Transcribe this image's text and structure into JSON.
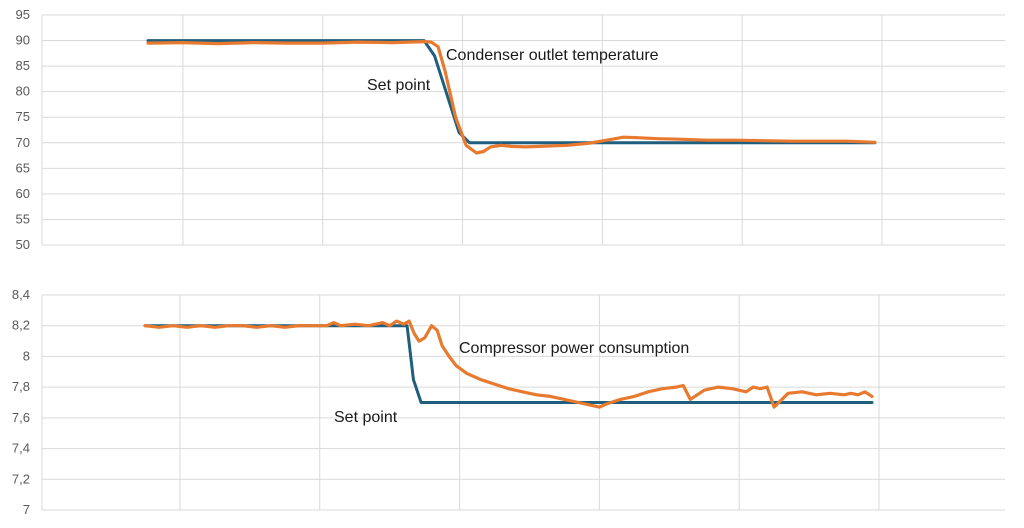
{
  "chart_data": [
    {
      "type": "line",
      "title": "",
      "xlabel": "",
      "ylabel": "",
      "ylim": [
        50,
        95
      ],
      "yticks": [
        "95",
        "90",
        "85",
        "80",
        "75",
        "70",
        "65",
        "60",
        "55",
        "50"
      ],
      "xlim": [
        0,
        100
      ],
      "xgrid": [
        5,
        25,
        45,
        65,
        85,
        105
      ],
      "grid": true,
      "annotations": [
        {
          "text": "Condenser outlet temperature",
          "x": 43.5,
          "y": 87.3
        },
        {
          "text": "Set point",
          "x": 31.5,
          "y": 81.3
        }
      ],
      "series": [
        {
          "name": "",
          "color": "#1f5e7d",
          "x": [
            0,
            39.5,
            41,
            44.5,
            46,
            104
          ],
          "y": [
            90,
            90,
            87,
            72,
            70,
            70
          ]
        },
        {
          "name": "",
          "color": "#e87a30",
          "x": [
            0,
            5,
            10,
            15,
            20,
            25,
            30,
            35,
            39.5,
            40.5,
            41.5,
            42.5,
            44,
            45.5,
            47,
            48,
            49,
            50.5,
            52,
            54,
            56,
            60,
            63,
            66,
            68,
            70,
            73,
            76,
            80,
            84,
            88,
            92,
            96,
            100,
            104
          ],
          "y": [
            89.5,
            89.6,
            89.4,
            89.6,
            89.5,
            89.5,
            89.7,
            89.6,
            89.8,
            89.7,
            88.8,
            84,
            75,
            69.5,
            68,
            68.3,
            69.2,
            69.5,
            69.3,
            69.2,
            69.3,
            69.5,
            69.9,
            70.6,
            71.1,
            71,
            70.8,
            70.7,
            70.5,
            70.5,
            70.4,
            70.3,
            70.3,
            70.3,
            70.1
          ]
        }
      ]
    },
    {
      "type": "line",
      "title": "",
      "xlabel": "",
      "ylabel": "",
      "ylim": [
        7,
        8.4
      ],
      "yticks": [
        "8,4",
        "8,2",
        "8",
        "7,8",
        "7,6",
        "7,4",
        "7,2",
        "7"
      ],
      "xlim": [
        0,
        100
      ],
      "xgrid": [
        5,
        25,
        45,
        65,
        85,
        105
      ],
      "grid": true,
      "annotations": [
        {
          "text": "Compressor power consumption",
          "x": 44.5,
          "y": 8.035
        },
        {
          "text": "Set point",
          "x": 27.5,
          "y": 7.61
        }
      ],
      "series": [
        {
          "name": "",
          "color": "#1f5e7d",
          "x": [
            0,
            37.5,
            38.4,
            39.5,
            104
          ],
          "y": [
            8.2,
            8.2,
            7.85,
            7.7,
            7.7
          ]
        },
        {
          "name": "",
          "color": "#e87a30",
          "x": [
            0,
            2,
            4,
            6,
            8,
            10,
            12,
            14,
            16,
            18,
            20,
            22,
            24,
            26,
            27,
            28,
            30,
            32,
            34,
            35,
            36,
            37,
            37.8,
            38.5,
            39.2,
            40,
            41,
            41.8,
            42.5,
            43.5,
            44.5,
            46,
            48,
            50,
            52,
            54,
            56,
            58,
            60,
            62,
            64,
            65,
            66,
            68,
            70,
            72,
            74,
            76,
            77,
            78,
            80,
            82,
            84,
            86,
            87,
            88,
            89,
            90,
            92,
            94,
            96,
            98,
            100,
            101,
            102,
            103,
            104
          ],
          "y": [
            8.2,
            8.19,
            8.2,
            8.19,
            8.2,
            8.19,
            8.2,
            8.2,
            8.19,
            8.2,
            8.19,
            8.2,
            8.2,
            8.2,
            8.22,
            8.2,
            8.21,
            8.2,
            8.22,
            8.2,
            8.23,
            8.21,
            8.23,
            8.15,
            8.1,
            8.12,
            8.2,
            8.17,
            8.07,
            8.0,
            7.94,
            7.89,
            7.85,
            7.82,
            7.79,
            7.77,
            7.75,
            7.74,
            7.72,
            7.7,
            7.68,
            7.67,
            7.69,
            7.72,
            7.74,
            7.77,
            7.79,
            7.8,
            7.81,
            7.72,
            7.78,
            7.8,
            7.79,
            7.77,
            7.8,
            7.79,
            7.8,
            7.67,
            7.76,
            7.77,
            7.75,
            7.76,
            7.75,
            7.76,
            7.75,
            7.77,
            7.74
          ]
        }
      ]
    }
  ]
}
